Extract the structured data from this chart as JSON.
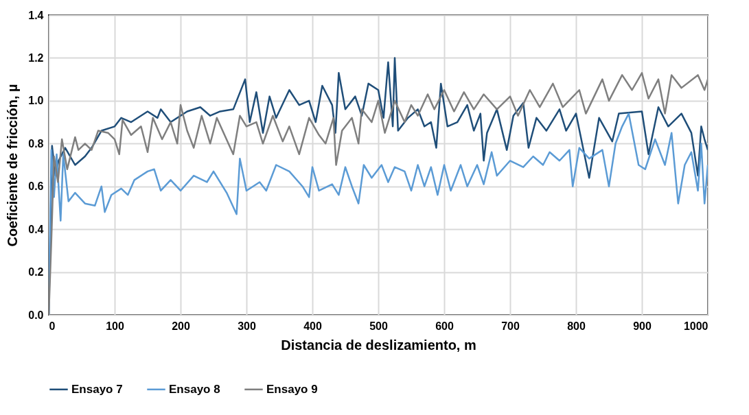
{
  "chart_data": {
    "type": "line",
    "xlabel": "Distancia de deslizamiento, m",
    "ylabel": "Coeficiente de fricción, µ",
    "xlim": [
      0,
      1000
    ],
    "xticks": [
      0,
      100,
      200,
      300,
      400,
      500,
      600,
      700,
      800,
      900,
      1000
    ],
    "ylim": [
      0,
      1.4
    ],
    "yticks": [
      {
        "value": 0,
        "label": "0.0"
      },
      {
        "value": 0.2,
        "label": "0.2"
      },
      {
        "value": 0.4,
        "label": "0.4"
      },
      {
        "value": 0.6,
        "label": "0.6"
      },
      {
        "value": 0.8,
        "label": "0.8"
      },
      {
        "value": 1,
        "label": "1.0"
      },
      {
        "value": 1.2,
        "label": "1.2"
      },
      {
        "value": 1.4,
        "label": "1.4"
      }
    ],
    "grid": true,
    "legend": "bottom",
    "marker": "none",
    "line_style": "solid",
    "series": [
      {
        "name": "Ensayo 7",
        "color": "#1f4e79",
        "x": [
          0,
          5,
          10,
          15,
          25,
          40,
          55,
          65,
          80,
          100,
          110,
          125,
          150,
          165,
          170,
          185,
          210,
          230,
          245,
          260,
          280,
          298,
          305,
          315,
          325,
          335,
          345,
          365,
          380,
          395,
          405,
          415,
          430,
          435,
          440,
          450,
          465,
          475,
          485,
          500,
          508,
          515,
          522,
          525,
          530,
          545,
          560,
          570,
          580,
          588,
          595,
          605,
          620,
          635,
          645,
          655,
          660,
          665,
          680,
          695,
          705,
          720,
          728,
          740,
          755,
          775,
          785,
          800,
          820,
          835,
          855,
          865,
          900,
          910,
          925,
          940,
          960,
          975,
          985,
          990,
          995,
          1000
        ],
        "values": [
          0,
          0.79,
          0.65,
          0.72,
          0.78,
          0.7,
          0.74,
          0.78,
          0.86,
          0.88,
          0.92,
          0.9,
          0.95,
          0.92,
          0.96,
          0.9,
          0.95,
          0.97,
          0.93,
          0.95,
          0.96,
          1.1,
          0.9,
          1.04,
          0.85,
          1.02,
          0.92,
          1.05,
          0.98,
          1.0,
          0.9,
          1.07,
          0.98,
          0.85,
          1.13,
          0.96,
          1.02,
          0.93,
          1.08,
          1.05,
          0.92,
          1.18,
          0.88,
          1.2,
          0.86,
          0.92,
          0.96,
          0.88,
          0.9,
          0.78,
          1.08,
          0.88,
          0.9,
          0.98,
          0.86,
          0.94,
          0.72,
          0.85,
          0.96,
          0.77,
          0.93,
          0.99,
          0.78,
          0.92,
          0.86,
          0.96,
          0.86,
          0.94,
          0.64,
          0.92,
          0.81,
          0.94,
          0.95,
          0.75,
          0.97,
          0.88,
          0.94,
          0.85,
          0.65,
          0.88,
          0.82,
          0.77
        ]
      },
      {
        "name": "Ensayo 8",
        "color": "#5b9bd5",
        "x": [
          0,
          4,
          8,
          12,
          18,
          22,
          30,
          40,
          55,
          70,
          80,
          85,
          95,
          110,
          120,
          130,
          150,
          160,
          170,
          185,
          200,
          220,
          240,
          250,
          270,
          285,
          290,
          300,
          320,
          330,
          345,
          365,
          385,
          395,
          400,
          410,
          430,
          440,
          450,
          460,
          470,
          478,
          490,
          505,
          515,
          525,
          540,
          550,
          560,
          570,
          580,
          590,
          600,
          610,
          625,
          635,
          650,
          660,
          672,
          680,
          700,
          720,
          735,
          750,
          760,
          775,
          790,
          795,
          805,
          820,
          840,
          850,
          860,
          870,
          880,
          895,
          905,
          920,
          935,
          945,
          955,
          965,
          975,
          985,
          990,
          995,
          1000
        ],
        "values": [
          0,
          0.77,
          0.55,
          0.75,
          0.44,
          0.75,
          0.53,
          0.57,
          0.52,
          0.51,
          0.6,
          0.48,
          0.56,
          0.59,
          0.56,
          0.63,
          0.67,
          0.68,
          0.58,
          0.63,
          0.58,
          0.65,
          0.62,
          0.67,
          0.57,
          0.47,
          0.73,
          0.58,
          0.62,
          0.58,
          0.7,
          0.67,
          0.6,
          0.55,
          0.69,
          0.58,
          0.61,
          0.56,
          0.69,
          0.6,
          0.52,
          0.7,
          0.64,
          0.7,
          0.62,
          0.69,
          0.67,
          0.58,
          0.7,
          0.6,
          0.69,
          0.56,
          0.7,
          0.58,
          0.7,
          0.6,
          0.7,
          0.61,
          0.76,
          0.65,
          0.72,
          0.69,
          0.74,
          0.7,
          0.76,
          0.72,
          0.77,
          0.6,
          0.78,
          0.73,
          0.77,
          0.6,
          0.8,
          0.88,
          0.94,
          0.7,
          0.68,
          0.82,
          0.7,
          0.85,
          0.52,
          0.7,
          0.76,
          0.58,
          0.8,
          0.52,
          0.7
        ]
      },
      {
        "name": "Ensayo 9",
        "color": "#7f7f7f",
        "x": [
          0,
          4,
          8,
          14,
          20,
          28,
          32,
          40,
          45,
          55,
          65,
          75,
          90,
          100,
          107,
          112,
          125,
          140,
          150,
          158,
          172,
          185,
          195,
          200,
          210,
          220,
          232,
          245,
          255,
          280,
          290,
          300,
          315,
          325,
          340,
          355,
          365,
          380,
          395,
          410,
          420,
          432,
          436,
          445,
          460,
          470,
          475,
          490,
          500,
          510,
          525,
          540,
          550,
          560,
          575,
          585,
          600,
          615,
          630,
          645,
          660,
          680,
          700,
          712,
          730,
          745,
          765,
          780,
          805,
          815,
          840,
          850,
          870,
          885,
          900,
          910,
          925,
          935,
          945,
          960,
          985,
          995,
          1000
        ],
        "values": [
          0,
          0.35,
          0.74,
          0.62,
          0.82,
          0.68,
          0.73,
          0.83,
          0.77,
          0.8,
          0.77,
          0.86,
          0.85,
          0.82,
          0.75,
          0.91,
          0.84,
          0.88,
          0.76,
          0.92,
          0.82,
          0.9,
          0.8,
          0.98,
          0.86,
          0.78,
          0.93,
          0.8,
          0.92,
          0.75,
          0.93,
          0.88,
          0.9,
          0.8,
          0.93,
          0.81,
          0.88,
          0.75,
          0.92,
          0.84,
          0.8,
          0.92,
          0.7,
          0.86,
          0.92,
          0.8,
          0.96,
          0.9,
          1.0,
          0.85,
          1.0,
          0.9,
          0.98,
          0.93,
          1.03,
          0.96,
          1.05,
          0.95,
          1.04,
          0.96,
          1.03,
          0.96,
          1.02,
          0.93,
          1.05,
          0.97,
          1.08,
          0.97,
          1.05,
          0.94,
          1.1,
          1.0,
          1.12,
          1.05,
          1.13,
          1.01,
          1.1,
          0.94,
          1.12,
          1.06,
          1.12,
          1.05,
          1.1
        ]
      }
    ]
  }
}
